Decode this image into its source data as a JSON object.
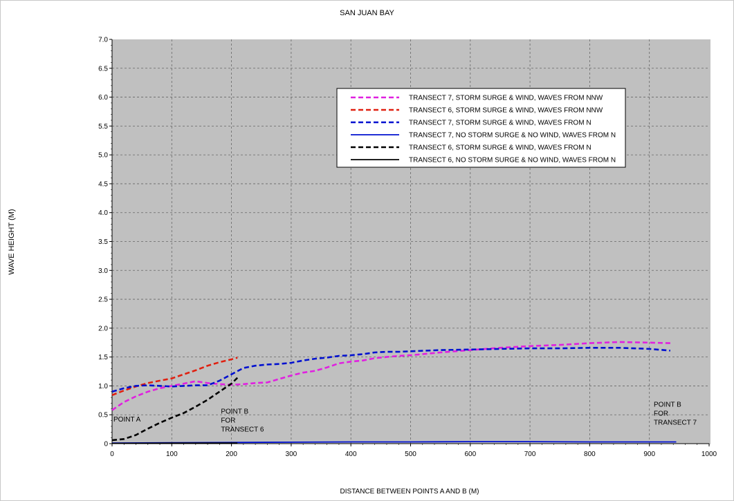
{
  "chart_data": {
    "type": "line",
    "title": "SAN JUAN BAY",
    "xlabel": "DISTANCE BETWEEN POINTS A AND B (M)",
    "ylabel": "WAVE HEIGHT  (M)",
    "xlim": [
      0,
      1000
    ],
    "ylim": [
      0,
      7
    ],
    "xticks": [
      "0",
      "100",
      "200",
      "300",
      "400",
      "500",
      "600",
      "700",
      "800",
      "900",
      "1000"
    ],
    "yticks": [
      "0",
      "0.5",
      "1.0",
      "1.5",
      "2.0",
      "2.5",
      "3.0",
      "3.5",
      "4.0",
      "4.5",
      "5.0",
      "5.5",
      "6.0",
      "6.5",
      "7.0"
    ],
    "grid": true,
    "legend_position": "top-right",
    "series": [
      {
        "name": "TRANSECT 7, STORM SURGE & WIND, WAVES FROM NNW",
        "color": "#e020e0",
        "style": "dashed",
        "x": [
          0,
          20,
          40,
          60,
          80,
          100,
          120,
          140,
          160,
          180,
          200,
          220,
          240,
          260,
          280,
          300,
          320,
          340,
          360,
          380,
          400,
          420,
          440,
          460,
          480,
          500,
          550,
          600,
          650,
          700,
          750,
          800,
          850,
          900,
          935
        ],
        "y": [
          0.58,
          0.72,
          0.82,
          0.9,
          0.96,
          1.0,
          1.04,
          1.08,
          1.05,
          1.03,
          1.02,
          1.03,
          1.05,
          1.06,
          1.12,
          1.18,
          1.23,
          1.26,
          1.32,
          1.39,
          1.42,
          1.44,
          1.48,
          1.5,
          1.52,
          1.53,
          1.58,
          1.62,
          1.66,
          1.69,
          1.71,
          1.74,
          1.76,
          1.75,
          1.74
        ]
      },
      {
        "name": "TRANSECT 6, STORM SURGE & WIND, WAVES FROM NNW",
        "color": "#e02010",
        "style": "dashed",
        "x": [
          0,
          20,
          40,
          60,
          80,
          100,
          120,
          140,
          160,
          180,
          200,
          210
        ],
        "y": [
          0.84,
          0.92,
          0.99,
          1.05,
          1.09,
          1.13,
          1.2,
          1.27,
          1.35,
          1.41,
          1.46,
          1.49
        ]
      },
      {
        "name": "TRANSECT 7, STORM SURGE & WIND, WAVES FROM N",
        "color": "#0010d0",
        "style": "dashed",
        "x": [
          0,
          20,
          40,
          60,
          80,
          100,
          120,
          140,
          160,
          180,
          200,
          220,
          240,
          260,
          280,
          300,
          320,
          340,
          360,
          380,
          400,
          420,
          440,
          460,
          480,
          500,
          550,
          600,
          650,
          700,
          750,
          800,
          850,
          900,
          935
        ],
        "y": [
          0.9,
          0.96,
          1.0,
          1.01,
          1.0,
          0.99,
          1.0,
          1.01,
          1.01,
          1.09,
          1.2,
          1.31,
          1.35,
          1.37,
          1.38,
          1.4,
          1.44,
          1.47,
          1.49,
          1.52,
          1.53,
          1.55,
          1.58,
          1.59,
          1.59,
          1.6,
          1.62,
          1.63,
          1.64,
          1.65,
          1.65,
          1.66,
          1.66,
          1.64,
          1.61
        ]
      },
      {
        "name": "TRANSECT 7, NO STORM SURGE & NO WIND, WAVES FROM N",
        "color": "#0010d0",
        "style": "solid",
        "x": [
          0,
          100,
          200,
          300,
          400,
          500,
          600,
          700,
          800,
          900,
          945
        ],
        "y": [
          0.01,
          0.015,
          0.02,
          0.025,
          0.03,
          0.03,
          0.035,
          0.035,
          0.03,
          0.03,
          0.03
        ]
      },
      {
        "name": "TRANSECT 6, STORM SURGE & WIND, WAVES FROM N",
        "color": "#000000",
        "style": "dashed",
        "x": [
          0,
          20,
          40,
          60,
          80,
          100,
          120,
          140,
          160,
          180,
          200,
          210
        ],
        "y": [
          0.06,
          0.08,
          0.15,
          0.26,
          0.36,
          0.45,
          0.53,
          0.64,
          0.76,
          0.9,
          1.04,
          1.14
        ]
      },
      {
        "name": "TRANSECT 6, NO STORM SURGE & NO WIND, WAVES FROM N",
        "color": "#000000",
        "style": "solid",
        "x": [
          0,
          100,
          210
        ],
        "y": [
          0.005,
          0.008,
          0.01
        ]
      }
    ],
    "annotations": [
      {
        "lines": [
          "POINT A"
        ],
        "x": 0,
        "y": 0.38
      },
      {
        "lines": [
          "POINT B",
          "FOR",
          "TRANSECT 6"
        ],
        "x": 180,
        "y": 0.52
      },
      {
        "lines": [
          "POINT B",
          "FOR",
          "TRANSECT 7"
        ],
        "x": 905,
        "y": 0.64
      }
    ]
  }
}
